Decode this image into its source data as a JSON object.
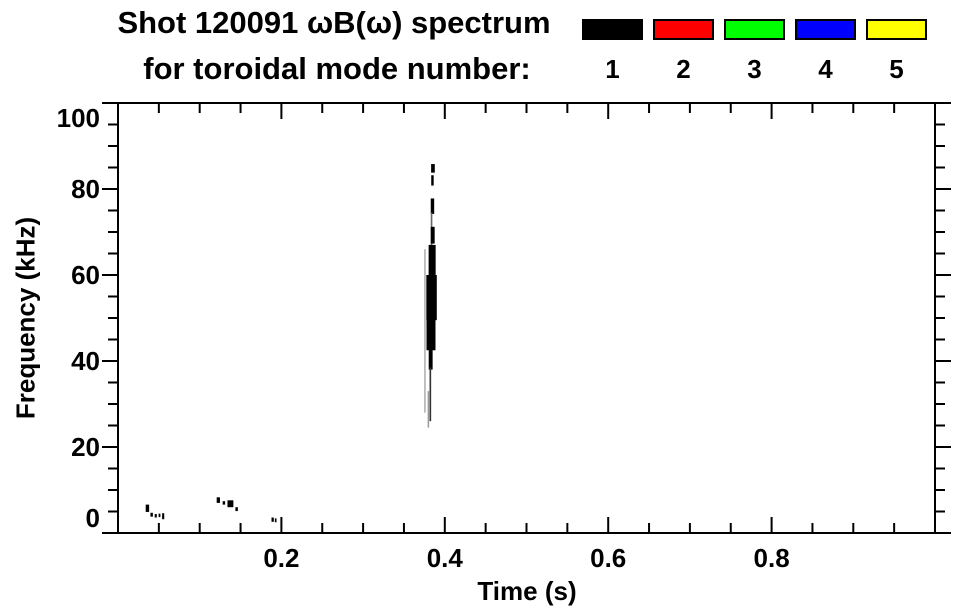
{
  "title": {
    "line1": "Shot 120091 ωB(ω) spectrum",
    "line2": "for toroidal mode number:"
  },
  "chart_data": {
    "type": "scatter",
    "title": "Shot 120091 ωB(ω) spectrum for toroidal mode number:",
    "xlabel": "Time (s)",
    "ylabel": "Frequency (kHz)",
    "xlim": [
      0,
      1.0
    ],
    "ylim": [
      0,
      100
    ],
    "x_major_ticks": [
      0.2,
      0.4,
      0.6,
      0.8
    ],
    "x_tick_labels": [
      "0.2",
      "0.4",
      "0.6",
      "0.8"
    ],
    "x_minor_interval": 0.05,
    "y_major_ticks": [
      0,
      20,
      40,
      60,
      80,
      100
    ],
    "y_tick_labels": [
      "0",
      "20",
      "40",
      "60",
      "80",
      "100"
    ],
    "y_minor_interval": 5,
    "grid": false,
    "background": "#ffffff",
    "axis_color": "#000000",
    "legend_position": "top-right-above-plot",
    "legend": [
      {
        "label": "1",
        "color": "#000000"
      },
      {
        "label": "2",
        "color": "#ff0000"
      },
      {
        "label": "3",
        "color": "#00ff00"
      },
      {
        "label": "4",
        "color": "#0000ff"
      },
      {
        "label": "5",
        "color": "#ffff00"
      }
    ],
    "series": [
      {
        "name": "mode n=1",
        "color": "#000000",
        "note": "vertical burst near t=0.38 s spanning ~24-86 kHz, plus weak low-frequency activity near t=0.04, 0.13 and 0.19 s",
        "segments": [
          {
            "t": 0.3855,
            "w": 0.0045,
            "f1": 83.8,
            "f2": 85.8
          },
          {
            "t": 0.3849,
            "w": 0.003,
            "f1": 80.8,
            "f2": 83.2
          },
          {
            "t": 0.3849,
            "w": 0.0042,
            "f1": 74.2,
            "f2": 77.8
          },
          {
            "t": 0.3838,
            "w": 0.002,
            "f1": 66.5,
            "f2": 74.5,
            "color": "#666666"
          },
          {
            "t": 0.3852,
            "w": 0.0048,
            "f1": 67.3,
            "f2": 71.2
          },
          {
            "t": 0.3845,
            "w": 0.0086,
            "f1": 59.5,
            "f2": 67.0
          },
          {
            "t": 0.3838,
            "w": 0.0128,
            "f1": 49.5,
            "f2": 60.0
          },
          {
            "t": 0.3831,
            "w": 0.011,
            "f1": 42.5,
            "f2": 50.5
          },
          {
            "t": 0.3827,
            "w": 0.0048,
            "f1": 38.0,
            "f2": 43.5
          },
          {
            "t": 0.3823,
            "w": 0.002,
            "f1": 26.0,
            "f2": 38.5,
            "color": "#333333"
          },
          {
            "t": 0.3799,
            "w": 0.0018,
            "f1": 24.5,
            "f2": 33.0,
            "color": "#999999"
          },
          {
            "t": 0.3757,
            "w": 0.0018,
            "f1": 28.0,
            "f2": 66.0,
            "color": "#aaaaaa"
          },
          {
            "t": 0.036,
            "w": 0.0042,
            "f1": 4.9,
            "f2": 6.6
          },
          {
            "t": 0.0412,
            "w": 0.003,
            "f1": 3.8,
            "f2": 4.7
          },
          {
            "t": 0.0462,
            "w": 0.0026,
            "f1": 3.6,
            "f2": 4.4
          },
          {
            "t": 0.0508,
            "w": 0.0022,
            "f1": 3.7,
            "f2": 4.5
          },
          {
            "t": 0.0553,
            "w": 0.0026,
            "f1": 3.2,
            "f2": 4.6
          },
          {
            "t": 0.1228,
            "w": 0.004,
            "f1": 7.0,
            "f2": 8.3
          },
          {
            "t": 0.1296,
            "w": 0.003,
            "f1": 6.6,
            "f2": 7.4
          },
          {
            "t": 0.1376,
            "w": 0.0072,
            "f1": 6.0,
            "f2": 7.6
          },
          {
            "t": 0.1452,
            "w": 0.003,
            "f1": 5.1,
            "f2": 6.0
          },
          {
            "t": 0.1893,
            "w": 0.0028,
            "f1": 2.6,
            "f2": 3.6
          },
          {
            "t": 0.193,
            "w": 0.002,
            "f1": 2.5,
            "f2": 3.4
          }
        ]
      }
    ]
  }
}
